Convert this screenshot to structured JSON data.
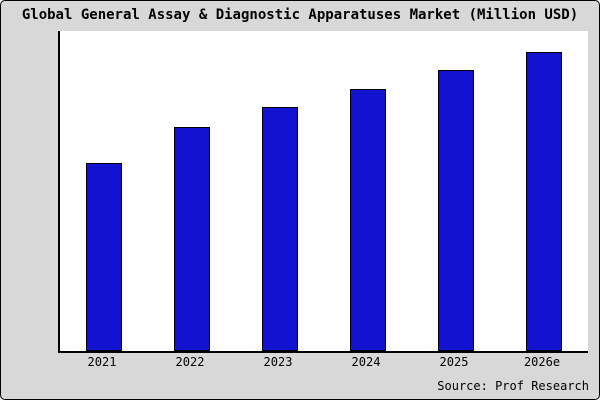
{
  "chart_data": {
    "type": "bar",
    "title": "Global General Assay & Diagnostic Apparatuses Market (Million USD)",
    "categories": [
      "2021",
      "2022",
      "2023",
      "2024",
      "2025",
      "2026e"
    ],
    "values": [
      62.7,
      75,
      81.7,
      87.7,
      94,
      100
    ],
    "xlabel": "",
    "ylabel": "",
    "ylim": [
      0,
      107
    ],
    "grid": false,
    "legend": false,
    "bar_color": "#1212d0",
    "bar_border_color": "#000000"
  },
  "footer": {
    "source_label": "Source: Prof Research"
  }
}
